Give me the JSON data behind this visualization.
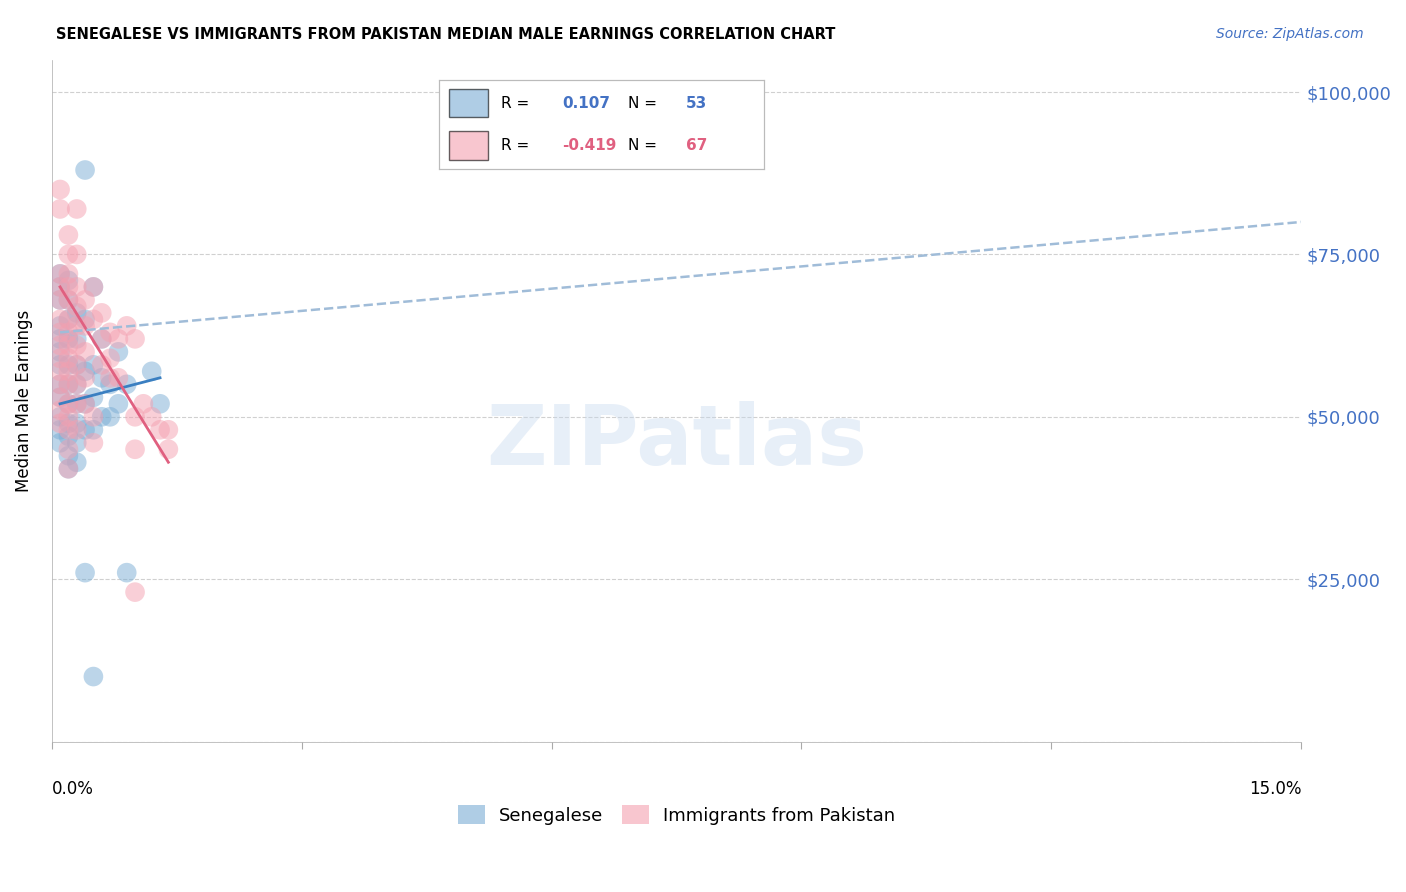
{
  "title": "SENEGALESE VS IMMIGRANTS FROM PAKISTAN MEDIAN MALE EARNINGS CORRELATION CHART",
  "source": "Source: ZipAtlas.com",
  "ylabel": "Median Male Earnings",
  "yticks": [
    0,
    25000,
    50000,
    75000,
    100000
  ],
  "ytick_labels": [
    "",
    "$25,000",
    "$50,000",
    "$75,000",
    "$100,000"
  ],
  "xmin": 0.0,
  "xmax": 0.15,
  "ymin": 0,
  "ymax": 105000,
  "senegalese_color": "#7aadd4",
  "pakistan_color": "#f4a0b0",
  "senegalese_R": 0.107,
  "senegalese_N": 53,
  "pakistan_R": -0.419,
  "pakistan_N": 67,
  "legend_label_1": "Senegalese",
  "legend_label_2": "Immigrants from Pakistan",
  "senegalese_line": [
    0.001,
    52000,
    0.013,
    56000
  ],
  "pakistan_line": [
    0.001,
    70000,
    0.014,
    43000
  ],
  "dashed_line": [
    0.001,
    63000,
    0.15,
    80000
  ],
  "senegalese_points": [
    [
      0.001,
      72000
    ],
    [
      0.001,
      70000
    ],
    [
      0.001,
      68000
    ],
    [
      0.001,
      64000
    ],
    [
      0.001,
      62000
    ],
    [
      0.001,
      60000
    ],
    [
      0.001,
      58000
    ],
    [
      0.001,
      55000
    ],
    [
      0.001,
      53000
    ],
    [
      0.001,
      50000
    ],
    [
      0.001,
      48000
    ],
    [
      0.001,
      46000
    ],
    [
      0.002,
      71000
    ],
    [
      0.002,
      68000
    ],
    [
      0.002,
      65000
    ],
    [
      0.002,
      62000
    ],
    [
      0.002,
      58000
    ],
    [
      0.002,
      55000
    ],
    [
      0.002,
      52000
    ],
    [
      0.002,
      49000
    ],
    [
      0.002,
      47000
    ],
    [
      0.002,
      44000
    ],
    [
      0.002,
      42000
    ],
    [
      0.003,
      66000
    ],
    [
      0.003,
      62000
    ],
    [
      0.003,
      58000
    ],
    [
      0.003,
      55000
    ],
    [
      0.003,
      52000
    ],
    [
      0.003,
      49000
    ],
    [
      0.003,
      46000
    ],
    [
      0.003,
      43000
    ],
    [
      0.004,
      88000
    ],
    [
      0.004,
      65000
    ],
    [
      0.004,
      57000
    ],
    [
      0.004,
      52000
    ],
    [
      0.004,
      48000
    ],
    [
      0.005,
      70000
    ],
    [
      0.005,
      58000
    ],
    [
      0.005,
      53000
    ],
    [
      0.005,
      48000
    ],
    [
      0.006,
      62000
    ],
    [
      0.006,
      56000
    ],
    [
      0.006,
      50000
    ],
    [
      0.007,
      55000
    ],
    [
      0.007,
      50000
    ],
    [
      0.008,
      60000
    ],
    [
      0.008,
      52000
    ],
    [
      0.009,
      55000
    ],
    [
      0.009,
      26000
    ],
    [
      0.012,
      57000
    ],
    [
      0.013,
      52000
    ],
    [
      0.004,
      26000
    ],
    [
      0.005,
      10000
    ]
  ],
  "pakistan_points": [
    [
      0.001,
      85000
    ],
    [
      0.001,
      82000
    ],
    [
      0.001,
      72000
    ],
    [
      0.001,
      70000
    ],
    [
      0.001,
      68000
    ],
    [
      0.001,
      65000
    ],
    [
      0.001,
      63000
    ],
    [
      0.001,
      61000
    ],
    [
      0.001,
      59000
    ],
    [
      0.001,
      57000
    ],
    [
      0.001,
      55000
    ],
    [
      0.001,
      53000
    ],
    [
      0.001,
      51000
    ],
    [
      0.001,
      49000
    ],
    [
      0.002,
      78000
    ],
    [
      0.002,
      75000
    ],
    [
      0.002,
      72000
    ],
    [
      0.002,
      70000
    ],
    [
      0.002,
      68000
    ],
    [
      0.002,
      65000
    ],
    [
      0.002,
      63000
    ],
    [
      0.002,
      61000
    ],
    [
      0.002,
      59000
    ],
    [
      0.002,
      57000
    ],
    [
      0.002,
      55000
    ],
    [
      0.002,
      52000
    ],
    [
      0.002,
      50000
    ],
    [
      0.002,
      48000
    ],
    [
      0.002,
      45000
    ],
    [
      0.002,
      42000
    ],
    [
      0.003,
      82000
    ],
    [
      0.003,
      75000
    ],
    [
      0.003,
      70000
    ],
    [
      0.003,
      67000
    ],
    [
      0.003,
      64000
    ],
    [
      0.003,
      61000
    ],
    [
      0.003,
      58000
    ],
    [
      0.003,
      55000
    ],
    [
      0.003,
      52000
    ],
    [
      0.003,
      48000
    ],
    [
      0.004,
      68000
    ],
    [
      0.004,
      64000
    ],
    [
      0.004,
      60000
    ],
    [
      0.004,
      56000
    ],
    [
      0.004,
      52000
    ],
    [
      0.005,
      70000
    ],
    [
      0.005,
      65000
    ],
    [
      0.005,
      50000
    ],
    [
      0.005,
      46000
    ],
    [
      0.006,
      66000
    ],
    [
      0.006,
      62000
    ],
    [
      0.006,
      58000
    ],
    [
      0.007,
      63000
    ],
    [
      0.007,
      59000
    ],
    [
      0.007,
      56000
    ],
    [
      0.008,
      62000
    ],
    [
      0.008,
      56000
    ],
    [
      0.009,
      64000
    ],
    [
      0.01,
      62000
    ],
    [
      0.01,
      50000
    ],
    [
      0.01,
      45000
    ],
    [
      0.01,
      23000
    ],
    [
      0.011,
      52000
    ],
    [
      0.012,
      50000
    ],
    [
      0.013,
      48000
    ],
    [
      0.014,
      48000
    ],
    [
      0.014,
      45000
    ]
  ]
}
